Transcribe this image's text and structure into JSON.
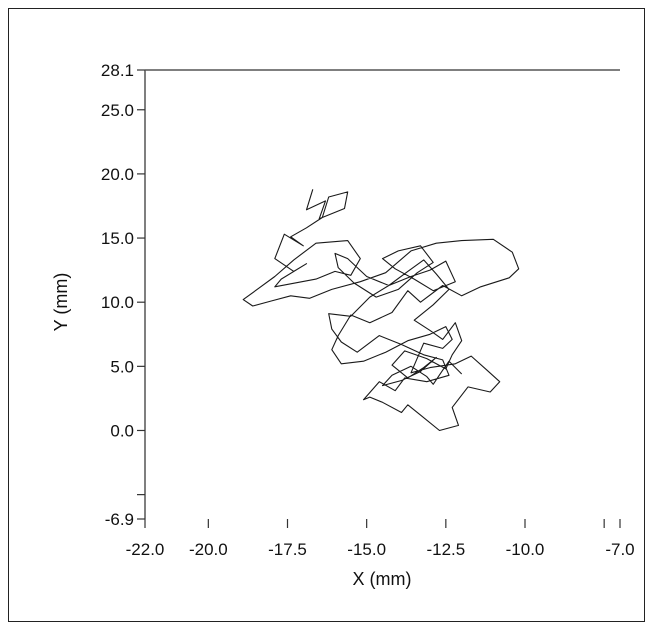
{
  "chart_data": {
    "type": "line",
    "title": "",
    "xlabel": "X (mm)",
    "ylabel": "Y (mm)",
    "xlim": [
      -22.0,
      -7.0
    ],
    "ylim": [
      -6.9,
      28.1
    ],
    "x_tick_labels": [
      "-22.0",
      "-20.0",
      "-17.5",
      "-15.0",
      "-12.5",
      "-10.0",
      "-7.0"
    ],
    "y_tick_labels": [
      "-6.9",
      "0.0",
      "5.0",
      "10.0",
      "15.0",
      "20.0",
      "25.0",
      "28.1"
    ],
    "grid": false,
    "legend": "none",
    "line_color": "#1a1a1a",
    "series": [
      {
        "x": [
          -16.7,
          -16.9,
          -16.3,
          -16.5,
          -15.7,
          -15.6,
          -16.2,
          -16.4,
          -16.9,
          -17.4,
          -17.0,
          -17.6,
          -17.9,
          -17.3,
          -16.9,
          -17.7,
          -17.9,
          -16.6,
          -16.0,
          -15.5,
          -15.2,
          -15.6,
          -16.6,
          -17.3,
          -17.9,
          -18.4,
          -18.9,
          -18.6,
          -18.0,
          -17.4,
          -16.8,
          -16.1,
          -15.2,
          -14.4,
          -13.6,
          -12.8,
          -12.0,
          -11.0,
          -10.4,
          -10.2,
          -10.5,
          -11.4,
          -12.0,
          -12.6,
          -13.3,
          -13.7,
          -14.2,
          -14.9,
          -15.5,
          -15.9,
          -16.1,
          -15.8,
          -15.1,
          -14.4,
          -13.7,
          -13.0,
          -12.5,
          -12.3,
          -12.6,
          -13.2,
          -13.6,
          -13.0,
          -12.2,
          -11.7,
          -11.2,
          -10.8,
          -11.1,
          -11.8,
          -12.3,
          -12.1,
          -12.7,
          -13.3,
          -13.7,
          -13.9,
          -14.5,
          -14.9,
          -15.1,
          -14.6,
          -14.1,
          -13.8,
          -13.1,
          -12.4,
          -12.6,
          -13.2,
          -13.9,
          -14.6,
          -15.3,
          -15.8,
          -16.1,
          -16.2,
          -15.5,
          -14.9,
          -14.3,
          -13.6,
          -13.0,
          -12.5,
          -12.2,
          -12.9,
          -13.5,
          -14.1,
          -14.5,
          -14.0,
          -13.3,
          -12.9,
          -13.4,
          -14.0,
          -14.7,
          -15.4,
          -15.9,
          -16.0,
          -15.6,
          -15.0,
          -14.3,
          -13.7,
          -13.2,
          -12.8,
          -12.4,
          -12.9,
          -13.5,
          -13.0,
          -12.6,
          -12.2,
          -12.0,
          -12.3,
          -12.5,
          -13.1,
          -13.8,
          -14.2,
          -13.7,
          -13.2,
          -12.8,
          -13.3,
          -13.9,
          -14.5,
          -14.2,
          -13.6,
          -13.1,
          -12.9,
          -12.6,
          -12.4,
          -12.0
        ],
        "y": [
          18.8,
          17.2,
          17.9,
          16.5,
          17.3,
          18.6,
          18.2,
          16.6,
          15.8,
          15.1,
          14.4,
          15.3,
          13.4,
          12.4,
          13.0,
          11.8,
          11.2,
          11.8,
          12.4,
          12.1,
          13.4,
          14.8,
          14.6,
          13.3,
          12.0,
          11.1,
          10.2,
          9.7,
          10.1,
          10.5,
          10.3,
          11.0,
          11.6,
          12.3,
          14.0,
          14.6,
          14.8,
          14.9,
          13.9,
          12.6,
          11.9,
          11.2,
          10.5,
          11.3,
          10.0,
          10.9,
          9.2,
          8.4,
          9.0,
          7.4,
          6.3,
          5.2,
          5.4,
          6.1,
          7.0,
          7.5,
          8.1,
          7.1,
          6.4,
          6.8,
          4.5,
          4.9,
          5.2,
          5.8,
          4.7,
          3.8,
          3.0,
          3.4,
          1.8,
          0.4,
          0.0,
          1.2,
          2.0,
          1.4,
          2.2,
          2.6,
          2.4,
          3.8,
          3.1,
          4.1,
          3.8,
          4.3,
          5.5,
          5.9,
          6.7,
          7.4,
          6.1,
          6.9,
          7.9,
          9.1,
          8.9,
          10.4,
          11.3,
          12.0,
          12.5,
          13.2,
          11.6,
          10.9,
          11.8,
          12.6,
          13.4,
          14.0,
          14.4,
          13.1,
          12.3,
          11.0,
          10.4,
          11.5,
          12.7,
          13.8,
          13.4,
          12.0,
          11.3,
          12.4,
          13.3,
          12.2,
          11.0,
          9.8,
          8.6,
          7.8,
          7.1,
          8.4,
          7.0,
          5.9,
          4.8,
          5.6,
          6.2,
          5.1,
          4.1,
          4.9,
          5.7,
          4.6,
          3.9,
          3.5,
          4.3,
          5.0,
          4.2,
          3.6,
          4.7,
          5.4,
          4.4
        ]
      }
    ]
  }
}
